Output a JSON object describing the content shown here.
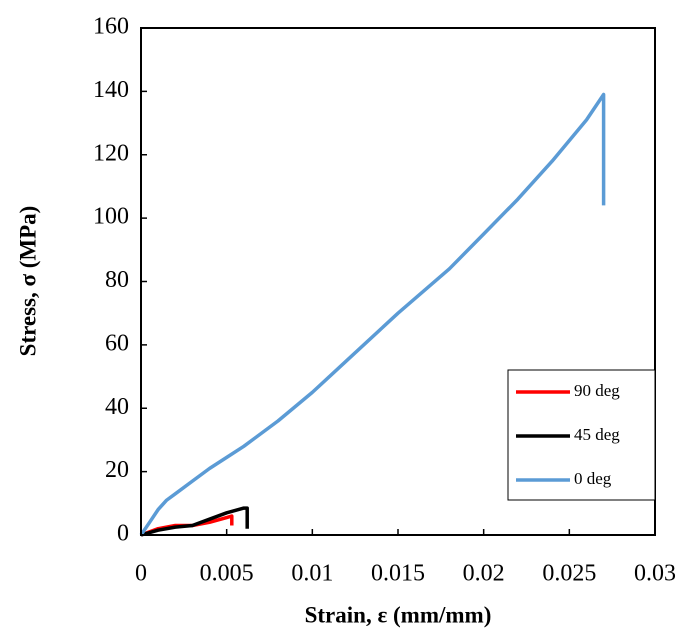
{
  "chart_data": {
    "type": "line",
    "x_label": "Strain, ε (mm/mm)",
    "y_label": "Stress, σ (MPa)",
    "xlim": [
      0,
      0.03
    ],
    "xticks": [
      0,
      0.005,
      0.01,
      0.015,
      0.02,
      0.025,
      0.03
    ],
    "ylim": [
      0,
      160
    ],
    "yticks": [
      0,
      20,
      40,
      60,
      80,
      100,
      120,
      140,
      160
    ],
    "grid": false,
    "legend": "lower-right",
    "series": [
      {
        "name": "90 deg",
        "color": "#ff0000",
        "x": [
          0,
          0.001,
          0.002,
          0.003,
          0.004,
          0.005,
          0.0053,
          0.0053
        ],
        "values": [
          0,
          2,
          3,
          3,
          4,
          5.5,
          6,
          3
        ]
      },
      {
        "name": "45 deg",
        "color": "#000000",
        "x": [
          0,
          0.001,
          0.002,
          0.003,
          0.004,
          0.005,
          0.006,
          0.0062,
          0.0062
        ],
        "values": [
          0,
          1.5,
          2.5,
          3,
          5,
          7,
          8.5,
          8.5,
          2
        ]
      },
      {
        "name": "0 deg",
        "color": "#5b9bd5",
        "x": [
          0,
          0.0005,
          0.001,
          0.0015,
          0.002,
          0.003,
          0.004,
          0.005,
          0.006,
          0.008,
          0.01,
          0.012,
          0.015,
          0.018,
          0.02,
          0.022,
          0.024,
          0.026,
          0.027,
          0.027
        ],
        "values": [
          0,
          4,
          8,
          11,
          13,
          17,
          21,
          24.5,
          28,
          36,
          45,
          55,
          70,
          84,
          95,
          106,
          118,
          131,
          139,
          104
        ]
      }
    ]
  }
}
